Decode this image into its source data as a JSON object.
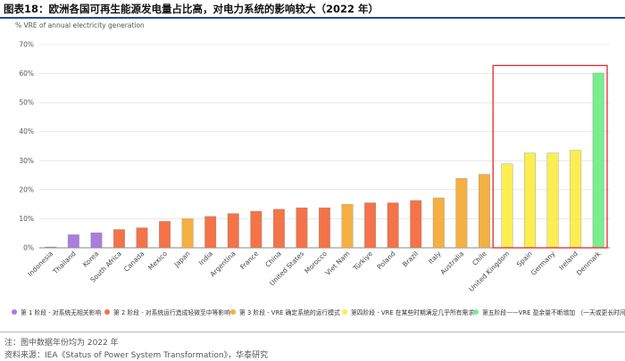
{
  "figure_title": "图表18：欧洲各国可再生能源发电量占比高，对电力系统的影响较大（2022 年）",
  "chart_data": {
    "type": "bar",
    "ylabel": "% VRE of annual electricity generation",
    "ylim": [
      0,
      70
    ],
    "yticks": [
      0,
      10,
      20,
      30,
      40,
      50,
      60,
      70
    ],
    "ytick_labels": [
      "0%",
      "10%",
      "20%",
      "30%",
      "40%",
      "50%",
      "60%",
      "70%"
    ],
    "grid": true,
    "categories": [
      "Indonesia",
      "Thailand",
      "Korea",
      "South Africa",
      "Canada",
      "Mexico",
      "Japan",
      "India",
      "Argentina",
      "France",
      "China",
      "United States",
      "Morocco",
      "Viet Nam",
      "Türkiye",
      "Poland",
      "Brazil",
      "Italy",
      "Australia",
      "Chile",
      "United Kingdom",
      "Spain",
      "Germany",
      "Ireland",
      "Denmark"
    ],
    "values": [
      0.3,
      4.5,
      5.2,
      6.3,
      6.9,
      9.1,
      10.0,
      10.8,
      11.8,
      12.6,
      13.3,
      13.8,
      13.8,
      15.0,
      15.5,
      15.5,
      16.3,
      17.2,
      23.9,
      25.3,
      28.9,
      32.6,
      32.6,
      33.6,
      60.2
    ],
    "phases": [
      1,
      1,
      1,
      2,
      2,
      2,
      3,
      2,
      2,
      2,
      2,
      2,
      2,
      3,
      2,
      2,
      2,
      3,
      3,
      3,
      4,
      4,
      4,
      4,
      5
    ],
    "phase_colors": {
      "1": "#a87ddc",
      "2": "#f47348",
      "3": "#f5b042",
      "4": "#fbee52",
      "5": "#7aed8c"
    },
    "highlight_color": "#e0292f",
    "legend": [
      {
        "phase": 1,
        "label": "第 1 阶段 - 对系统无相关影响"
      },
      {
        "phase": 2,
        "label": "第 2 阶段 - 对系统运行造成轻微至中等影响"
      },
      {
        "phase": 3,
        "label": "第 3 阶段 - VRE 确定系统的运行模式"
      },
      {
        "phase": 4,
        "label": "第四阶段 - VRE 在某些时期满足几乎所有需求"
      },
      {
        "phase": 5,
        "label": "第五阶段——VRE 盈余量不断增加 （一天或更长时间）"
      }
    ]
  },
  "notes": {
    "note": "注：图中数据年份均为 2022 年",
    "source": "资料来源：IEA《Status of Power System Transformation》，华泰研究"
  }
}
